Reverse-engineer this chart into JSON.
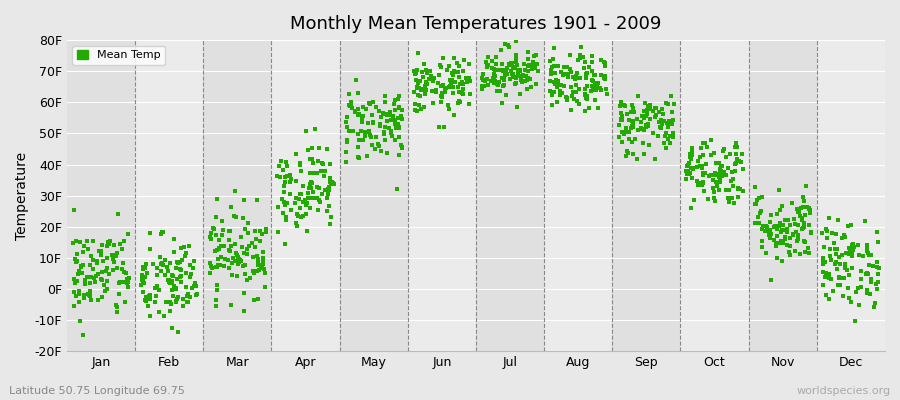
{
  "title": "Monthly Mean Temperatures 1901 - 2009",
  "ylabel": "Temperature",
  "xlabel_labels": [
    "Jan",
    "Feb",
    "Mar",
    "Apr",
    "May",
    "Jun",
    "Jul",
    "Aug",
    "Sep",
    "Oct",
    "Nov",
    "Dec"
  ],
  "subtitle": "Latitude 50.75 Longitude 69.75",
  "watermark": "worldspecies.org",
  "legend_label": "Mean Temp",
  "dot_color": "#22aa00",
  "bg_color_light": "#ebebeb",
  "bg_color_dark": "#e0e0e0",
  "fig_bg": "#e8e8e8",
  "grid_color": "#ffffff",
  "vline_color": "#888888",
  "ylim": [
    -20,
    80
  ],
  "ytick_labels": [
    "-20F",
    "-10F",
    "0F",
    "10F",
    "20F",
    "30F",
    "40F",
    "50F",
    "60F",
    "70F",
    "80F"
  ],
  "ytick_values": [
    -20,
    -10,
    0,
    10,
    20,
    30,
    40,
    50,
    60,
    70,
    80
  ],
  "monthly_means_F": [
    5.0,
    2.0,
    12.0,
    33.0,
    53.0,
    65.0,
    70.0,
    66.0,
    53.0,
    38.0,
    20.0,
    8.0
  ],
  "monthly_std_F": [
    7.5,
    7.5,
    7.0,
    7.0,
    6.0,
    4.5,
    4.0,
    4.5,
    5.0,
    5.5,
    6.0,
    7.0
  ],
  "num_years": 109
}
